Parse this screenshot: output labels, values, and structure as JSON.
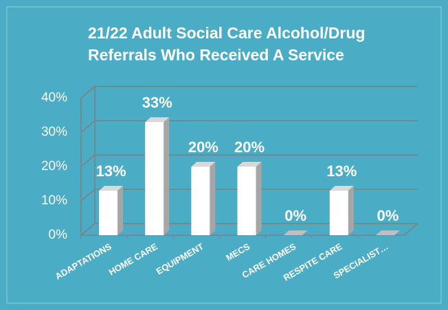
{
  "chart_data": {
    "type": "bar",
    "title": [
      "21/22 Adult Social Care Alcohol/Drug",
      "Referrals Who Received A Service"
    ],
    "categories": [
      "ADAPTATIONS",
      "HOME CARE",
      "EQUIPMENT",
      "MECS",
      "CARE HOMES",
      "RESPITE CARE",
      "SPECIALIST…"
    ],
    "values": [
      13,
      33,
      20,
      20,
      0,
      13,
      0
    ],
    "value_labels": [
      "13%",
      "33%",
      "20%",
      "20%",
      "0%",
      "13%",
      "0%"
    ],
    "color": "#ffffff",
    "ylim": [
      0,
      40
    ],
    "yticks": [
      {
        "value": 0,
        "label": "0%"
      },
      {
        "value": 10,
        "label": "10%"
      },
      {
        "value": 20,
        "label": "20%"
      },
      {
        "value": 30,
        "label": "30%"
      },
      {
        "value": 40,
        "label": "40%"
      }
    ],
    "grid": true
  }
}
